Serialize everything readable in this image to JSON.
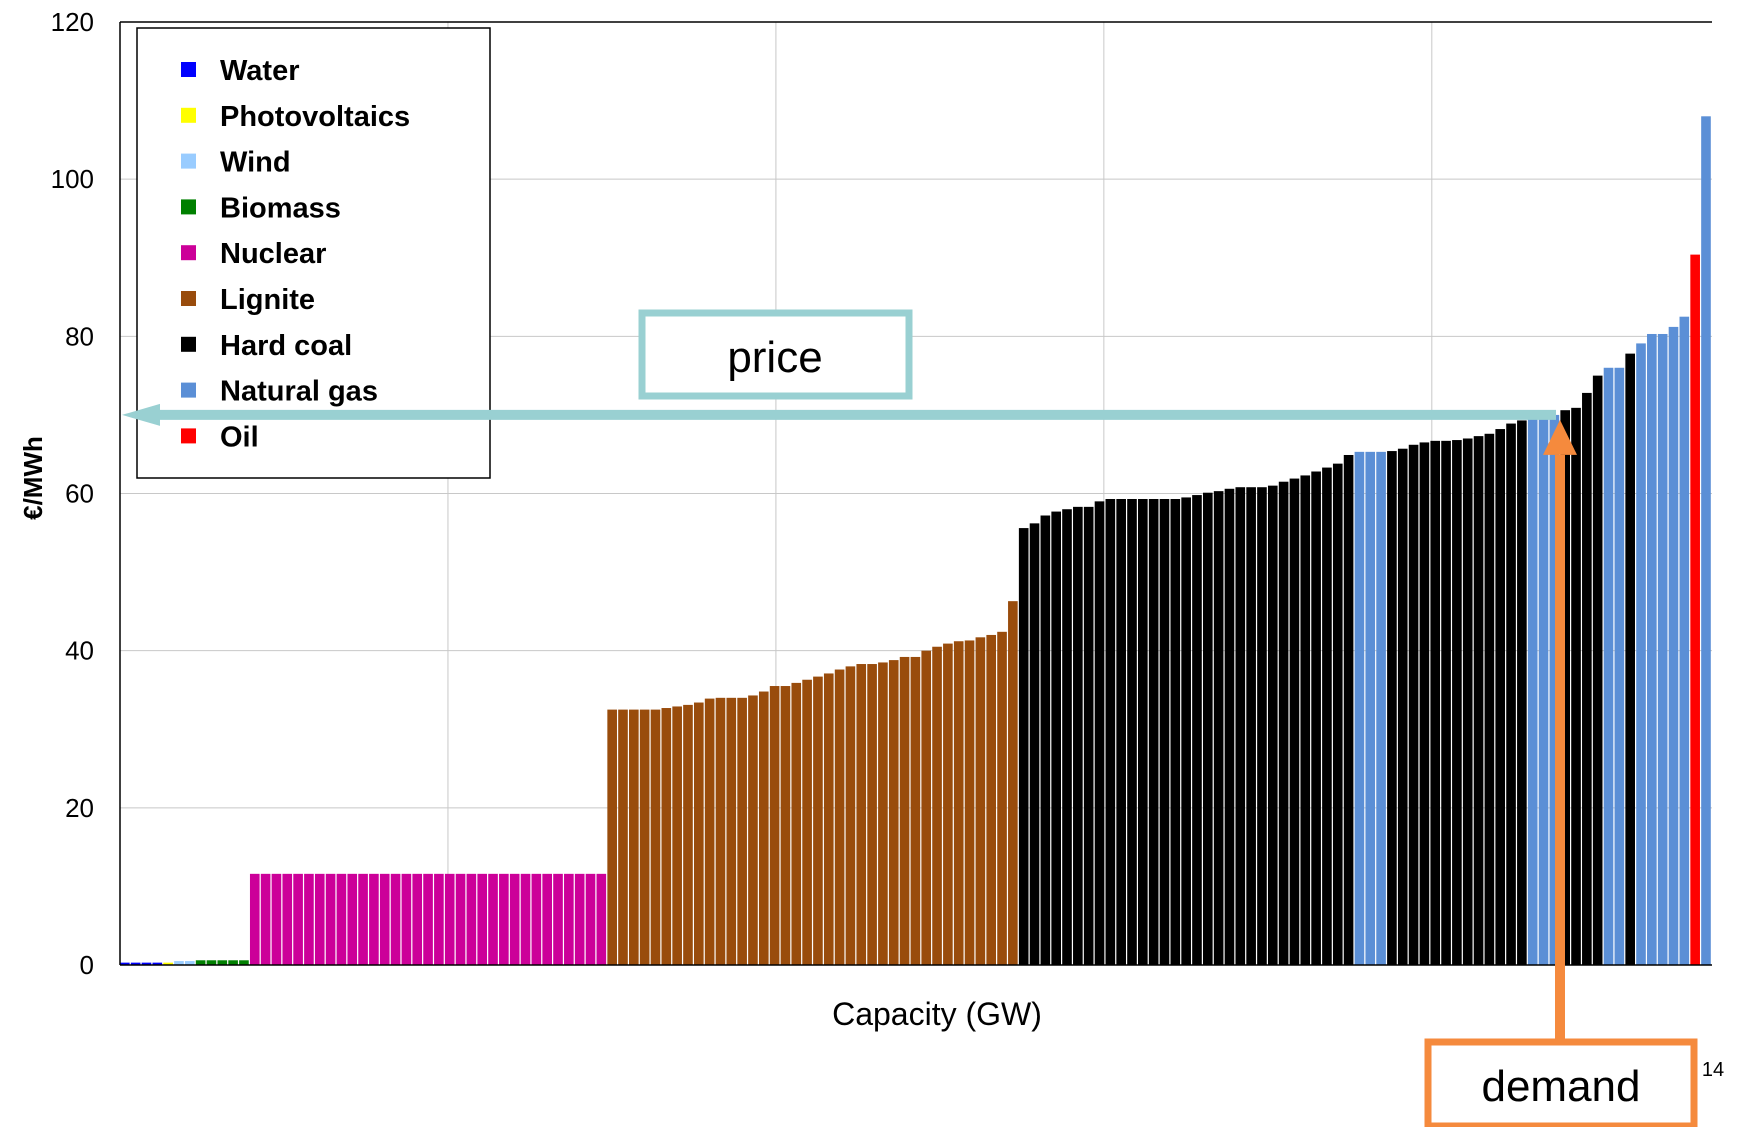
{
  "chart_data": {
    "type": "bar",
    "title": "",
    "xlabel": "Capacity (GW)",
    "ylabel": "€/MWh",
    "ylim": [
      0,
      120
    ],
    "yticks": [
      0,
      20,
      40,
      60,
      80,
      100,
      120
    ],
    "grid": true,
    "legend_position": "top-left",
    "series": [
      {
        "name": "Water",
        "color": "#0000ff",
        "values": [
          0.3,
          0.3,
          0.3,
          0.3
        ]
      },
      {
        "name": "Photovoltaics",
        "color": "#ffff00",
        "values": [
          0.3
        ]
      },
      {
        "name": "Wind",
        "color": "#99ccff",
        "values": [
          0.5,
          0.5
        ]
      },
      {
        "name": "Biomass",
        "color": "#008000",
        "values": [
          0.6,
          0.6,
          0.6,
          0.6,
          0.6
        ]
      },
      {
        "name": "Nuclear",
        "color": "#cc0099",
        "values": [
          11.6,
          11.6,
          11.6,
          11.6,
          11.6,
          11.6,
          11.6,
          11.6,
          11.6,
          11.6,
          11.6,
          11.6,
          11.6,
          11.6,
          11.6,
          11.6,
          11.6,
          11.6,
          11.6,
          11.6,
          11.6,
          11.6,
          11.6,
          11.6,
          11.6,
          11.6,
          11.6,
          11.6,
          11.6,
          11.6,
          11.6,
          11.6,
          11.6
        ]
      },
      {
        "name": "Lignite",
        "color": "#994c0c",
        "values": [
          32.5,
          32.5,
          32.5,
          32.5,
          32.5,
          32.7,
          32.9,
          33.1,
          33.4,
          33.9,
          34.0,
          34.0,
          34.0,
          34.3,
          34.8,
          35.5,
          35.5,
          35.9,
          36.3,
          36.7,
          37.1,
          37.6,
          38.0,
          38.3,
          38.3,
          38.5,
          38.8,
          39.2,
          39.2,
          40.0,
          40.5,
          40.9,
          41.2,
          41.3,
          41.7,
          42.0,
          42.4,
          46.3
        ]
      },
      {
        "name": "Hard coal",
        "color": "#000000",
        "values": [
          55.6,
          56.2,
          57.2,
          57.7,
          58.0,
          58.3,
          58.3,
          59.0,
          59.3,
          59.3,
          59.3,
          59.3,
          59.3,
          59.3,
          59.3,
          59.5,
          59.8,
          60.1,
          60.3,
          60.6,
          60.8,
          60.8,
          60.8,
          61.0,
          61.5,
          61.9,
          62.3,
          62.8,
          63.3,
          63.8,
          64.9
        ]
      },
      {
        "name": "Natural gas",
        "color": "#5b8fd6",
        "values": [
          65.3,
          65.3,
          65.3
        ]
      },
      {
        "name": "Hard coal",
        "color": "#000000",
        "values": [
          65.4,
          65.7,
          66.2,
          66.5,
          66.7,
          66.7,
          66.8,
          67.0,
          67.3,
          67.6,
          68.2,
          68.9,
          69.3
        ]
      },
      {
        "name": "Natural gas",
        "color": "#5b8fd6",
        "values": [
          70.0,
          70.0,
          70.0
        ]
      },
      {
        "name": "Hard coal",
        "color": "#000000",
        "values": [
          70.6,
          70.9,
          72.8,
          75.0
        ]
      },
      {
        "name": "Natural gas",
        "color": "#5b8fd6",
        "values": [
          76.0,
          76.0
        ]
      },
      {
        "name": "Hard coal",
        "color": "#000000",
        "values": [
          77.8
        ]
      },
      {
        "name": "Natural gas",
        "color": "#5b8fd6",
        "values": [
          79.1,
          80.3,
          80.3,
          81.2,
          82.5
        ]
      },
      {
        "name": "Oil",
        "color": "#ff0000",
        "values": [
          90.4
        ]
      },
      {
        "name": "Natural gas",
        "color": "#5b8fd6",
        "values": [
          108.0
        ]
      }
    ],
    "annotations": [
      {
        "text": "price",
        "value": 70,
        "color": "#99d0d2"
      },
      {
        "text": "demand",
        "color": "#f58a3d"
      }
    ]
  },
  "legend": [
    {
      "label": "Water",
      "color": "#0000ff"
    },
    {
      "label": "Photovoltaics",
      "color": "#ffff00"
    },
    {
      "label": "Wind",
      "color": "#99ccff"
    },
    {
      "label": "Biomass",
      "color": "#008000"
    },
    {
      "label": "Nuclear",
      "color": "#cc0099"
    },
    {
      "label": "Lignite",
      "color": "#994c0c"
    },
    {
      "label": "Hard coal",
      "color": "#000000"
    },
    {
      "label": "Natural gas",
      "color": "#5b8fd6"
    },
    {
      "label": "Oil",
      "color": "#ff0000"
    }
  ],
  "page_number": "14"
}
